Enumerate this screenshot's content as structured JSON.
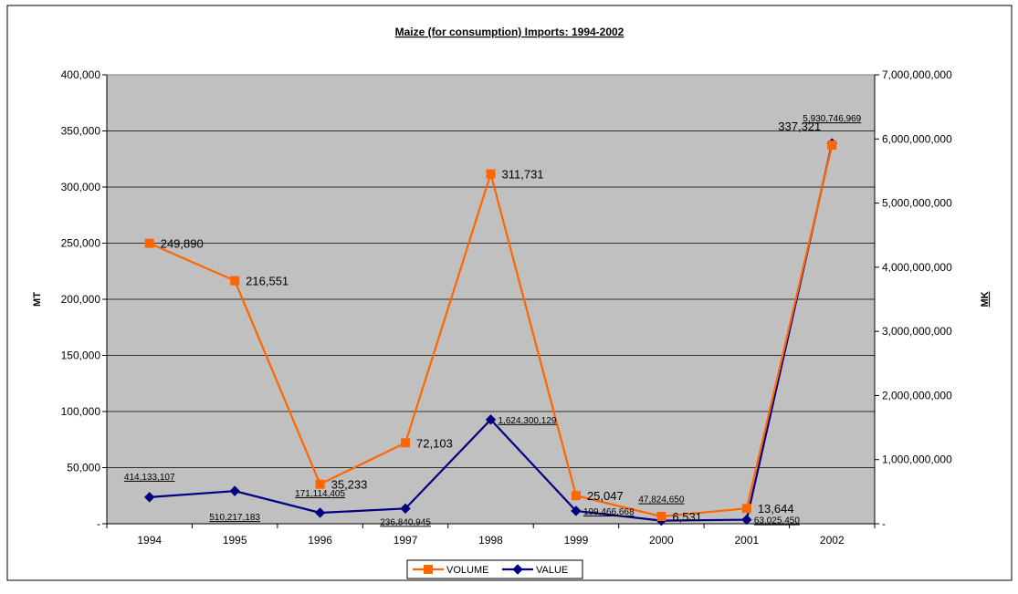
{
  "chart_data": {
    "type": "line",
    "title": "Maize (for consumption) Imports: 1994-2002",
    "categories": [
      "1994",
      "1995",
      "1996",
      "1997",
      "1998",
      "1999",
      "2000",
      "2001",
      "2002"
    ],
    "y_left": {
      "label": "MT",
      "min": 0,
      "max": 400000,
      "step": 50000,
      "ticks": [
        "-",
        "50,000",
        "100,000",
        "150,000",
        "200,000",
        "250,000",
        "300,000",
        "350,000",
        "400,000"
      ]
    },
    "y_right": {
      "label": "MK",
      "min": 0,
      "max": 7000000000,
      "step": 1000000000,
      "ticks": [
        "-",
        "1,000,000,000",
        "2,000,000,000",
        "3,000,000,000",
        "4,000,000,000",
        "5,000,000,000",
        "6,000,000,000",
        "7,000,000,000"
      ]
    },
    "grid": true,
    "legend_position": "bottom",
    "series": [
      {
        "name": "VOLUME",
        "axis": "left",
        "color": "#FF6600",
        "marker": "square",
        "values": [
          249890,
          216551,
          35233,
          72103,
          311731,
          25047,
          6531,
          13644,
          337321
        ],
        "labels": [
          "249,890",
          "216,551",
          "35,233",
          "72,103",
          "311,731",
          "25,047",
          "6,531",
          "13,644",
          "337,321"
        ]
      },
      {
        "name": "VALUE",
        "axis": "right",
        "color": "#000080",
        "marker": "diamond",
        "values": [
          414133107,
          510217183,
          171114405,
          236840945,
          1624300129,
          199466668,
          47824650,
          63025450,
          5930746969
        ],
        "labels": [
          "414,133,107",
          "510,217,183",
          "171,114,405",
          "236,840,945",
          "1,624,300,129",
          "199,466,668",
          "47,824,650",
          "63,025,450",
          "5,930,746,969"
        ]
      }
    ]
  }
}
